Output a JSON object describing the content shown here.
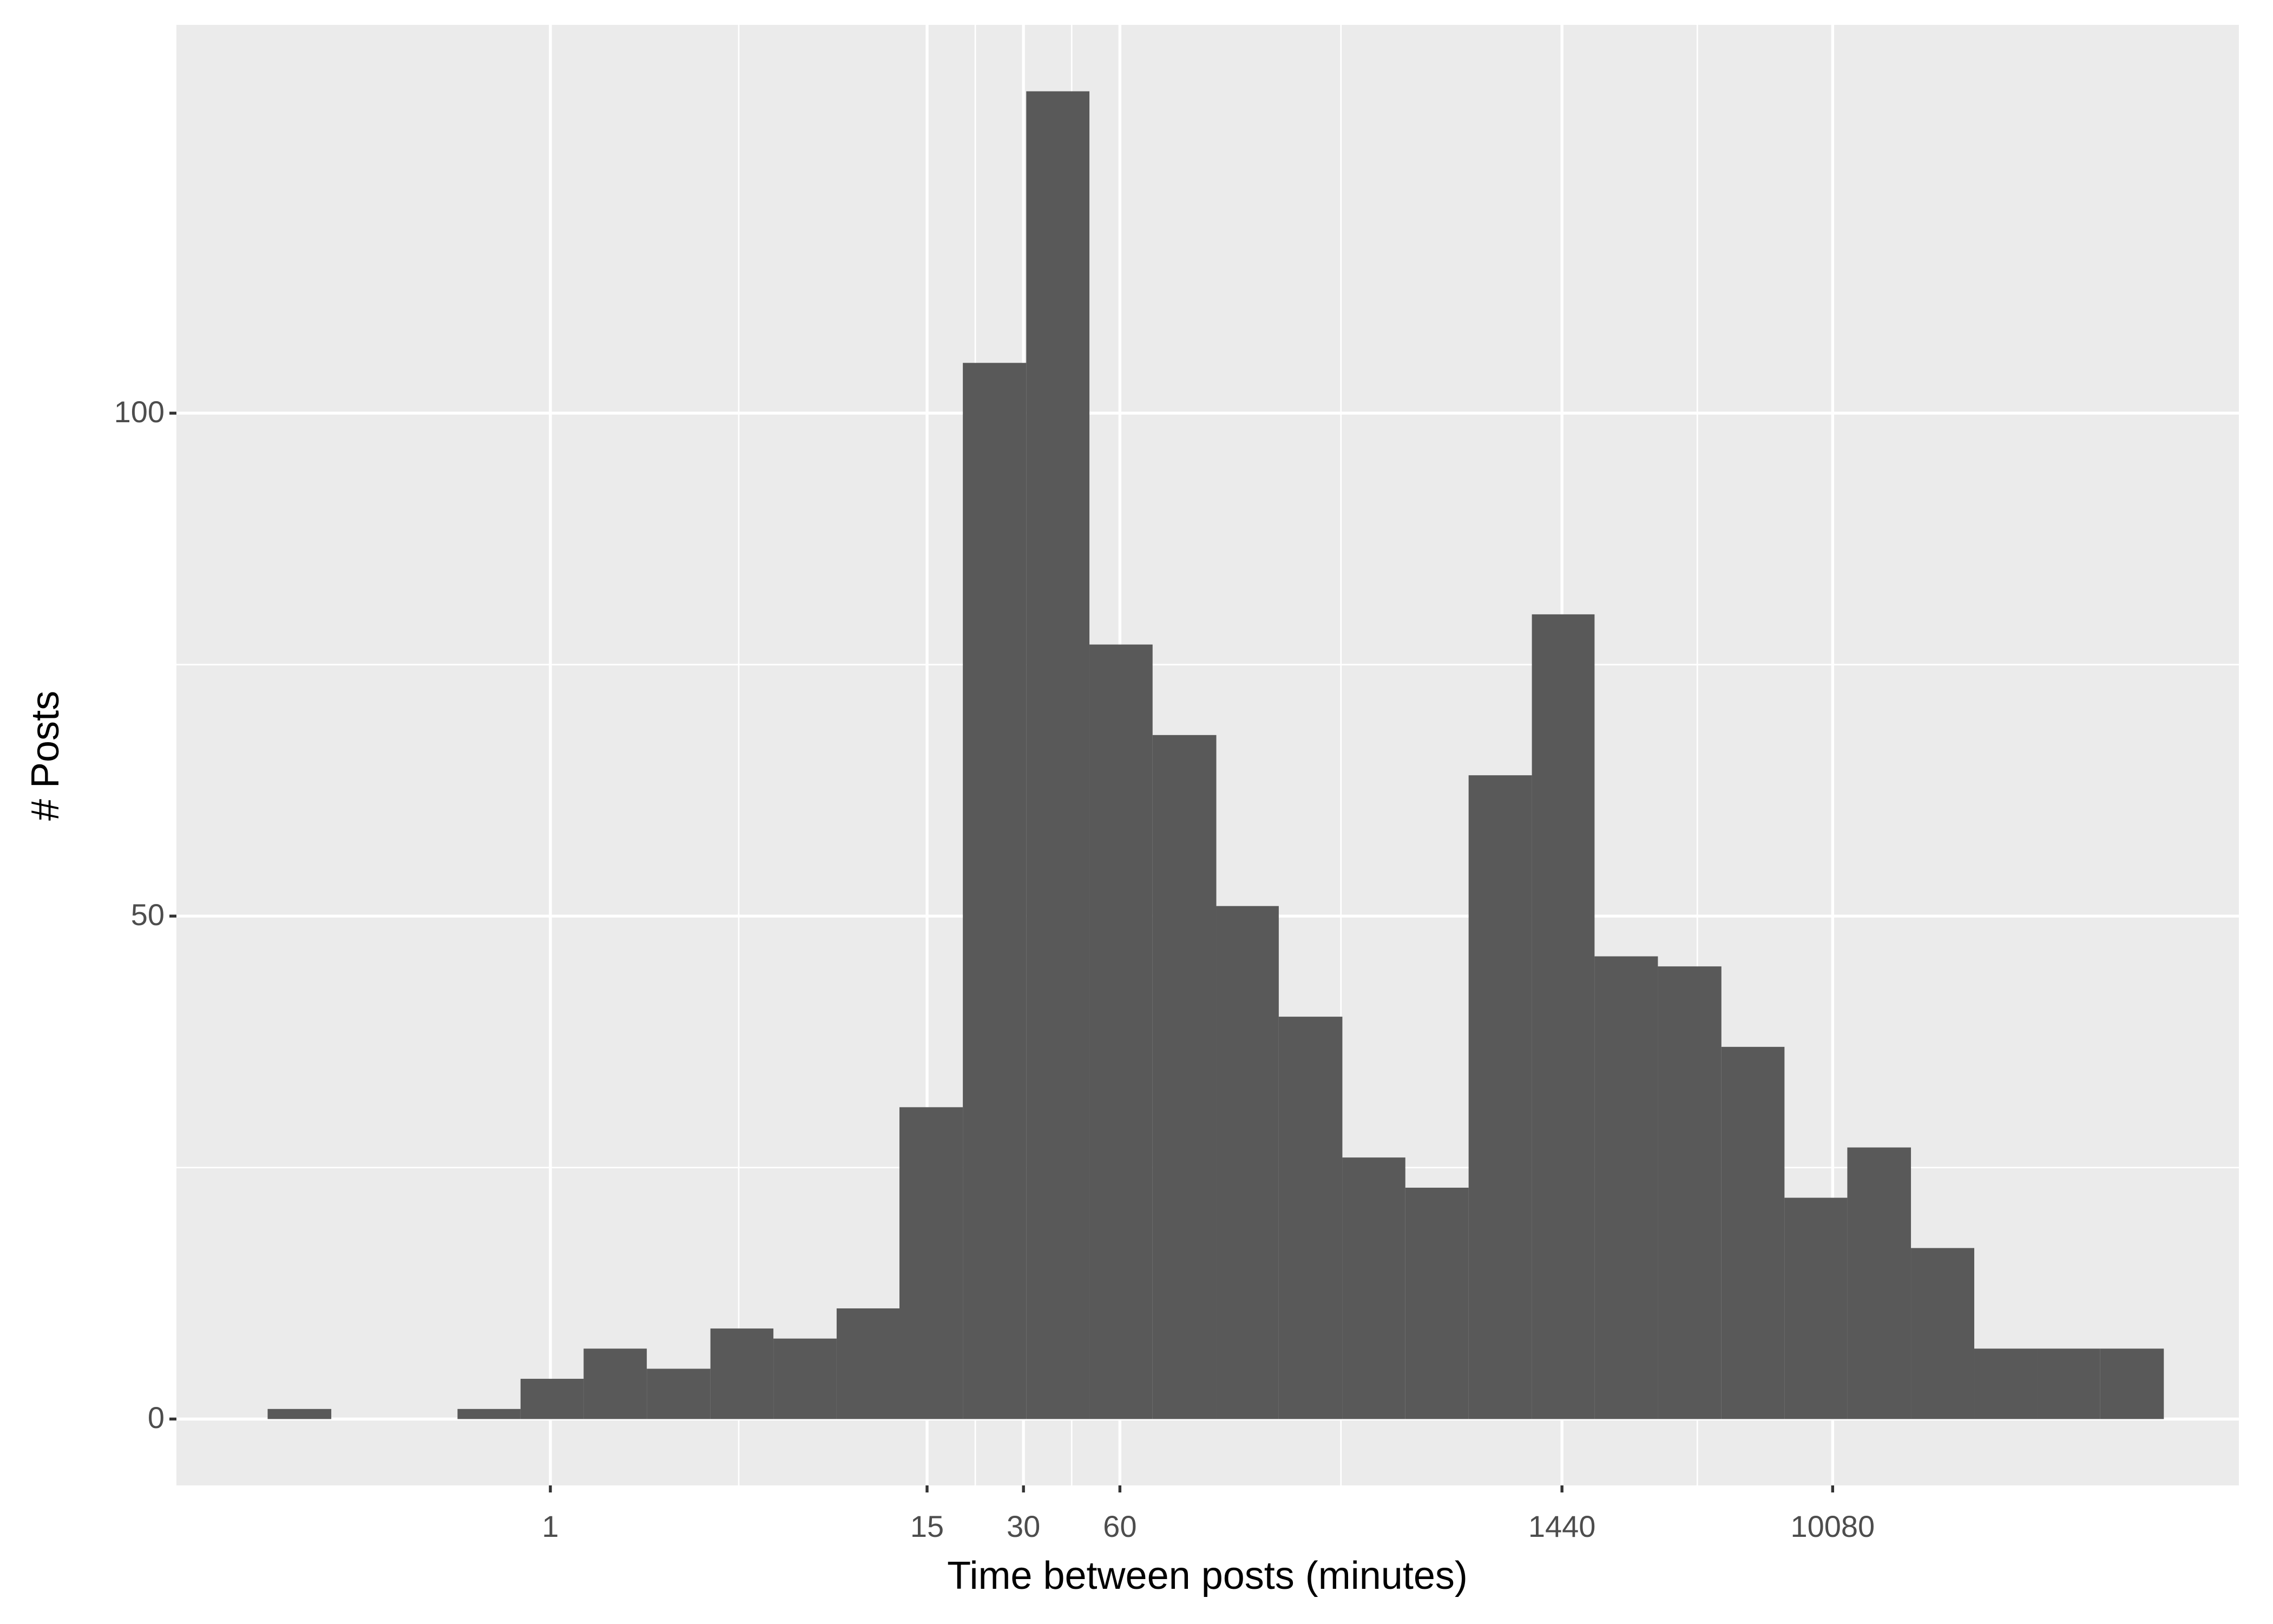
{
  "chart_data": {
    "type": "histogram",
    "x_label": "Time between posts (minutes)",
    "y_label": "# Posts",
    "xscale": "log",
    "bins": [
      0.131,
      0.207,
      0.325,
      0.513,
      0.807,
      1.27,
      2.0,
      3.16,
      4.97,
      7.83,
      12.3,
      19.4,
      30.6,
      48.2,
      75.9,
      120,
      188,
      297,
      467,
      736,
      1160,
      1820,
      2870,
      4530,
      7130,
      11200,
      17700,
      27900,
      43900,
      69000,
      109000
    ],
    "values": [
      1,
      0,
      0,
      1,
      4,
      7,
      5,
      9,
      8,
      11,
      31,
      105,
      132,
      77,
      68,
      51,
      40,
      26,
      23,
      64,
      80,
      46,
      45,
      37,
      22,
      27,
      17,
      7,
      7,
      7
    ],
    "color": "#595959",
    "xlim": [
      0.068,
      187000
    ],
    "xticks": [
      1,
      15,
      30,
      60,
      1440,
      10080
    ],
    "ylim": [
      -6.6,
      138.6
    ],
    "yticks": [
      0,
      50,
      100
    ],
    "grid": true
  }
}
